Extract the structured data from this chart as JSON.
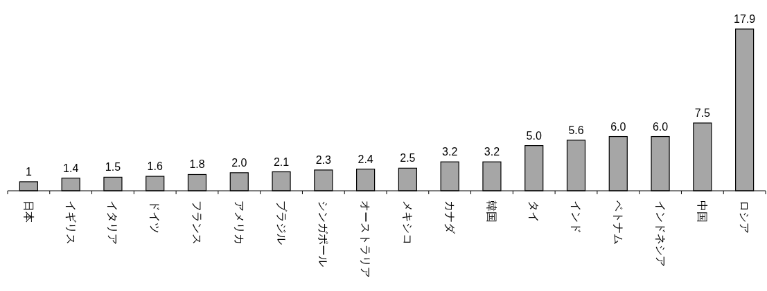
{
  "chart_data": {
    "type": "bar",
    "categories": [
      "日本",
      "イギリス",
      "イタリア",
      "ドイツ",
      "フランス",
      "アメリカ",
      "ブラジル",
      "シンガポール",
      "オーストラリア",
      "メキシコ",
      "カナダ",
      "韓国",
      "タイ",
      "インド",
      "ベトナム",
      "インドネシア",
      "中国",
      "ロシア"
    ],
    "values": [
      1,
      1.4,
      1.5,
      1.6,
      1.8,
      2.0,
      2.1,
      2.3,
      2.4,
      2.5,
      3.2,
      3.2,
      5.0,
      5.6,
      6.0,
      6.0,
      7.5,
      17.9
    ],
    "value_labels": [
      "1",
      "1.4",
      "1.5",
      "1.6",
      "1.8",
      "2.0",
      "2.1",
      "2.3",
      "2.4",
      "2.5",
      "3.2",
      "3.2",
      "5.0",
      "5.6",
      "6.0",
      "6.0",
      "7.5",
      "17.9"
    ],
    "color": "#a6a6a6"
  }
}
